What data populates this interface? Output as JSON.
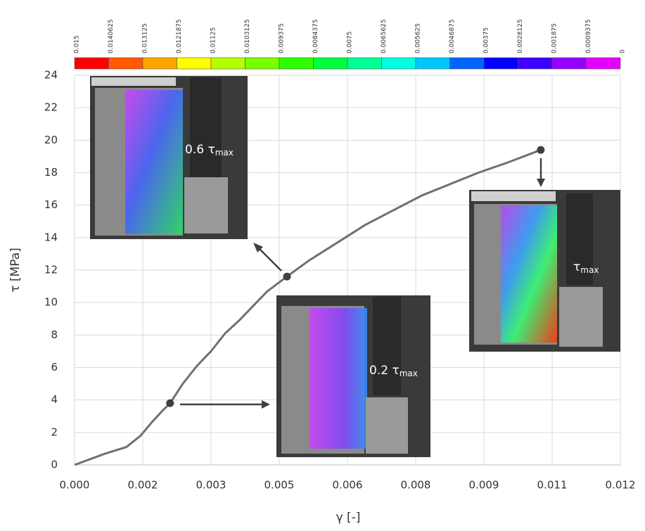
{
  "chart_data": {
    "type": "line",
    "ylabel": "τ [MPa]",
    "xlabel": "γ [-]",
    "x": [
      0,
      0.00068,
      0.00114,
      0.00145,
      0.00169,
      0.00192,
      0.0021,
      0.00238,
      0.00269,
      0.003,
      0.00331,
      0.00362,
      0.00393,
      0.00424,
      0.00467,
      0.00516,
      0.00578,
      0.0064,
      0.00702,
      0.00764,
      0.00826,
      0.00888,
      0.0095,
      0.01025
    ],
    "values": [
      0,
      0.7,
      1.1,
      1.8,
      2.6,
      3.3,
      3.8,
      5.0,
      6.1,
      7.0,
      8.1,
      8.9,
      9.8,
      10.7,
      11.6,
      12.6,
      13.7,
      14.8,
      15.7,
      16.6,
      17.3,
      18.0,
      18.6,
      19.4
    ],
    "color": "#707070",
    "points": {
      "x": [
        0.0021,
        0.00467,
        0.01025
      ],
      "values": [
        3.8,
        11.6,
        19.4
      ],
      "color": "#404040"
    },
    "xlim": [
      0,
      0.012
    ],
    "ylim": [
      0,
      24
    ],
    "xticks": [
      {
        "value": 0,
        "label": "0.000"
      },
      {
        "value": 0.0015,
        "label": "0.002"
      },
      0.003,
      {
        "value": 0.0045,
        "label": "0.005"
      },
      0.006,
      {
        "value": 0.0075,
        "label": "0.008"
      },
      0.009,
      {
        "value": 0.0105,
        "label": "0.011"
      },
      0.012
    ],
    "yticks": [
      0,
      2,
      4,
      6,
      8,
      10,
      12,
      14,
      16,
      18,
      20,
      22,
      24
    ],
    "grid": true,
    "colorbar": {
      "labels": [
        "0.015",
        "0.0140625",
        "0.013125",
        "0.0121875",
        "0.01125",
        "0.0103125",
        "0.009375",
        "0.0084375",
        "0.0075",
        "0.0065625",
        "0.005625",
        "0.0046875",
        "0.00375",
        "0.0028125",
        "0.001875",
        "0.0009375",
        "0"
      ],
      "colors": [
        "#ff0000",
        "#ff5a00",
        "#ffa500",
        "#ffff00",
        "#b4ff00",
        "#78ff00",
        "#2cff00",
        "#00ff3c",
        "#00ff96",
        "#00ffe0",
        "#00c8ff",
        "#0064ff",
        "#0000ff",
        "#3c00ff",
        "#9600ff",
        "#e600ff"
      ]
    },
    "annotations": [
      {
        "text": "0.6 τ",
        "sub": "max"
      },
      {
        "text": "0.2 τ",
        "sub": "max"
      },
      {
        "text": "τ",
        "sub": "max"
      }
    ]
  }
}
